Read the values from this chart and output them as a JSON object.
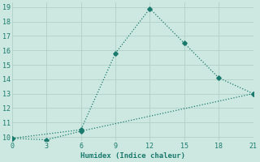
{
  "line1_x": [
    0,
    6,
    9,
    12,
    15,
    18,
    21
  ],
  "line1_y": [
    9.9,
    10.5,
    15.8,
    18.9,
    16.5,
    14.1,
    13.0
  ],
  "line2_x": [
    0,
    3,
    6,
    21
  ],
  "line2_y": [
    9.9,
    9.8,
    10.4,
    13.0
  ],
  "line_color": "#1a7a6e",
  "bg_color": "#cde8e0",
  "grid_color": "#aed0c8",
  "xlabel": "Humidex (Indice chaleur)",
  "xlim": [
    0,
    21
  ],
  "ylim": [
    9.7,
    19.3
  ],
  "yticks": [
    10,
    11,
    12,
    13,
    14,
    15,
    16,
    17,
    18,
    19
  ],
  "xticks": [
    0,
    3,
    6,
    9,
    12,
    15,
    18,
    21
  ]
}
